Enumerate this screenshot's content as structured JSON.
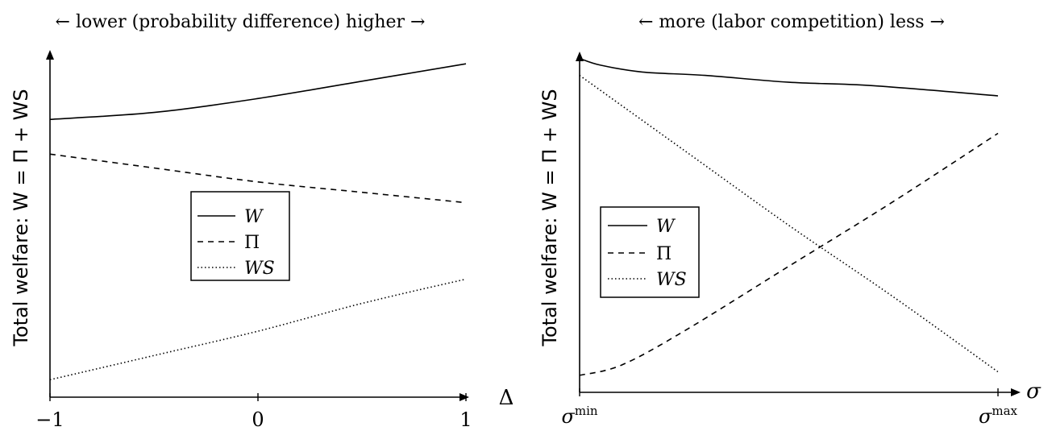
{
  "chart_data": [
    {
      "type": "line",
      "title": "← lower (probability difference) higher →",
      "ylabel": "Total welfare: W = Π + WS",
      "xlabel": "Δ",
      "x_ticks": [
        "−1",
        "0",
        "1"
      ],
      "xlim": [
        -1,
        1
      ],
      "ylim": [
        0,
        1
      ],
      "legend_position": "center",
      "legend": [
        "W",
        "Π",
        "WS"
      ],
      "series": [
        {
          "name": "W",
          "style": "solid",
          "x": [
            -1,
            -0.5,
            0,
            0.5,
            1
          ],
          "y": [
            0.8,
            0.82,
            0.86,
            0.91,
            0.96
          ]
        },
        {
          "name": "Π",
          "style": "dashed",
          "x": [
            -1,
            -0.5,
            0,
            0.5,
            1
          ],
          "y": [
            0.7,
            0.66,
            0.62,
            0.59,
            0.56
          ]
        },
        {
          "name": "WS",
          "style": "dotted",
          "x": [
            -1,
            -0.5,
            0,
            0.5,
            1
          ],
          "y": [
            0.05,
            0.12,
            0.19,
            0.27,
            0.34
          ]
        }
      ]
    },
    {
      "type": "line",
      "title": "← more (labor competition) less →",
      "ylabel": "Total welfare: W = Π + WS",
      "xlabel": "σ",
      "x_ticks": [
        "σ^min",
        "σ^max"
      ],
      "x_ticks_base": [
        "σ",
        "σ"
      ],
      "x_ticks_sup": [
        "min",
        "max"
      ],
      "xlim": [
        0,
        1
      ],
      "ylim": [
        0,
        1
      ],
      "legend_position": "center-left",
      "legend": [
        "W",
        "Π",
        "WS"
      ],
      "series": [
        {
          "name": "W",
          "style": "solid",
          "x": [
            0,
            0.05,
            0.15,
            0.3,
            0.5,
            0.7,
            1
          ],
          "y": [
            0.98,
            0.96,
            0.94,
            0.93,
            0.91,
            0.9,
            0.87
          ]
        },
        {
          "name": "Π",
          "style": "dashed",
          "x": [
            0,
            0.1,
            0.25,
            0.5,
            0.75,
            1
          ],
          "y": [
            0.05,
            0.08,
            0.18,
            0.37,
            0.56,
            0.76
          ]
        },
        {
          "name": "WS",
          "style": "dotted",
          "x": [
            0,
            0.25,
            0.5,
            0.75,
            1
          ],
          "y": [
            0.93,
            0.71,
            0.49,
            0.28,
            0.06
          ]
        }
      ]
    }
  ]
}
